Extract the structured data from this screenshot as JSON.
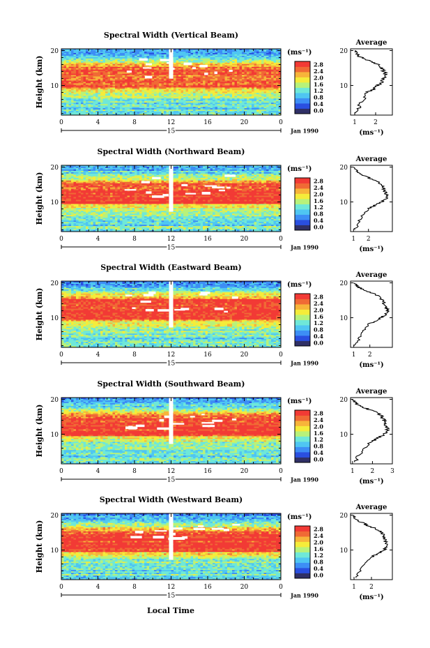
{
  "figure": {
    "xlabel": "Local Time",
    "date_label": "Jan 1990",
    "day_label": "15",
    "ylabel": "Height (km)",
    "unit_label": "(ms⁻¹)",
    "average_title": "Average",
    "avg_unit_label": "(ms⁻¹)"
  },
  "colorscale": {
    "ticks": [
      "0.0",
      "0.4",
      "0.8",
      "1.2",
      "1.6",
      "2.0",
      "2.4",
      "2.8"
    ],
    "colors": [
      "#303066",
      "#2a4fe0",
      "#3d8ef5",
      "#4fc6f2",
      "#6fe8d8",
      "#b8f27a",
      "#f5ec3a",
      "#f7b43a",
      "#f06a35",
      "#f23a35"
    ]
  },
  "chart_data": [
    {
      "type": "heatmap",
      "title": "Spectral Width (Vertical Beam)",
      "x_ticks": [
        "0",
        "4",
        "8",
        "12",
        "16",
        "20",
        "0"
      ],
      "y_ticks": [
        "20",
        "10"
      ],
      "xlim": [
        0,
        24
      ],
      "ylim": [
        1.5,
        20.5
      ],
      "profile": {
        "xlim": [
          0.8,
          2.8
        ],
        "x_ticks": [
          "1",
          "2"
        ],
        "y_ticks": [
          "20",
          "10"
        ],
        "height": [
          2,
          4,
          6,
          8,
          9,
          10,
          11,
          12,
          13,
          14,
          15,
          16,
          17,
          18,
          19,
          20
        ],
        "values": [
          1.1,
          1.2,
          1.4,
          1.6,
          1.9,
          2.1,
          2.3,
          2.4,
          2.5,
          2.4,
          2.3,
          2.1,
          1.7,
          1.3,
          1.1,
          1.0
        ]
      }
    },
    {
      "type": "heatmap",
      "title": "Spectral Width (Northward Beam)",
      "x_ticks": [
        "0",
        "4",
        "8",
        "12",
        "16",
        "20",
        "0"
      ],
      "y_ticks": [
        "20",
        "10"
      ],
      "xlim": [
        0,
        24
      ],
      "ylim": [
        1.5,
        20.5
      ],
      "profile": {
        "xlim": [
          0.8,
          3.6
        ],
        "x_ticks": [
          "1",
          "2"
        ],
        "y_ticks": [
          "20",
          "10"
        ],
        "height": [
          2,
          4,
          6,
          8,
          9,
          10,
          11,
          12,
          13,
          14,
          15,
          16,
          17,
          18,
          19,
          20
        ],
        "values": [
          1.1,
          1.3,
          1.6,
          2.0,
          2.4,
          2.9,
          3.2,
          3.2,
          3.1,
          3.0,
          2.9,
          2.5,
          2.0,
          1.5,
          1.2,
          1.0
        ]
      }
    },
    {
      "type": "heatmap",
      "title": "Spectral Width (Eastward Beam)",
      "x_ticks": [
        "0",
        "4",
        "8",
        "12",
        "16",
        "20",
        "0"
      ],
      "y_ticks": [
        "20",
        "10"
      ],
      "xlim": [
        0,
        24
      ],
      "ylim": [
        1.5,
        20.5
      ],
      "profile": {
        "xlim": [
          0.8,
          3.4
        ],
        "x_ticks": [
          "1",
          "2"
        ],
        "y_ticks": [
          "20",
          "10"
        ],
        "height": [
          2,
          4,
          6,
          8,
          9,
          10,
          11,
          12,
          13,
          14,
          15,
          16,
          17,
          18,
          19,
          20
        ],
        "values": [
          1.1,
          1.3,
          1.6,
          1.9,
          2.3,
          2.7,
          3.0,
          3.1,
          3.0,
          2.9,
          2.8,
          2.6,
          2.2,
          1.6,
          1.2,
          1.0
        ]
      }
    },
    {
      "type": "heatmap",
      "title": "Spectral Width (Southward Beam)",
      "x_ticks": [
        "0",
        "4",
        "8",
        "12",
        "16",
        "20",
        "0"
      ],
      "y_ticks": [
        "20",
        "10"
      ],
      "xlim": [
        0,
        24
      ],
      "ylim": [
        1.5,
        20.5
      ],
      "profile": {
        "xlim": [
          0.9,
          3.0
        ],
        "x_ticks": [
          "1",
          "2",
          "3"
        ],
        "y_ticks": [
          "20",
          "10"
        ],
        "height": [
          2,
          4,
          6,
          8,
          9,
          10,
          11,
          12,
          13,
          14,
          15,
          16,
          17,
          18,
          19,
          20
        ],
        "values": [
          1.1,
          1.3,
          1.6,
          2.0,
          2.3,
          2.6,
          2.8,
          2.7,
          2.6,
          2.6,
          2.5,
          2.3,
          1.9,
          1.4,
          1.1,
          1.0
        ]
      }
    },
    {
      "type": "heatmap",
      "title": "Spectral Width (Westward Beam)",
      "x_ticks": [
        "0",
        "4",
        "8",
        "12",
        "16",
        "20",
        "0"
      ],
      "y_ticks": [
        "20",
        "10"
      ],
      "xlim": [
        0,
        24
      ],
      "ylim": [
        1.5,
        20.5
      ],
      "profile": {
        "xlim": [
          0.8,
          3.2
        ],
        "x_ticks": [
          "1",
          "2"
        ],
        "y_ticks": [
          "20",
          "10"
        ],
        "height": [
          2,
          4,
          6,
          8,
          9,
          10,
          11,
          12,
          13,
          14,
          15,
          16,
          17,
          18,
          19,
          20
        ],
        "values": [
          1.1,
          1.3,
          1.6,
          2.0,
          2.4,
          2.7,
          2.9,
          2.8,
          2.8,
          2.7,
          2.6,
          2.3,
          1.8,
          1.4,
          1.1,
          1.0
        ]
      }
    }
  ]
}
